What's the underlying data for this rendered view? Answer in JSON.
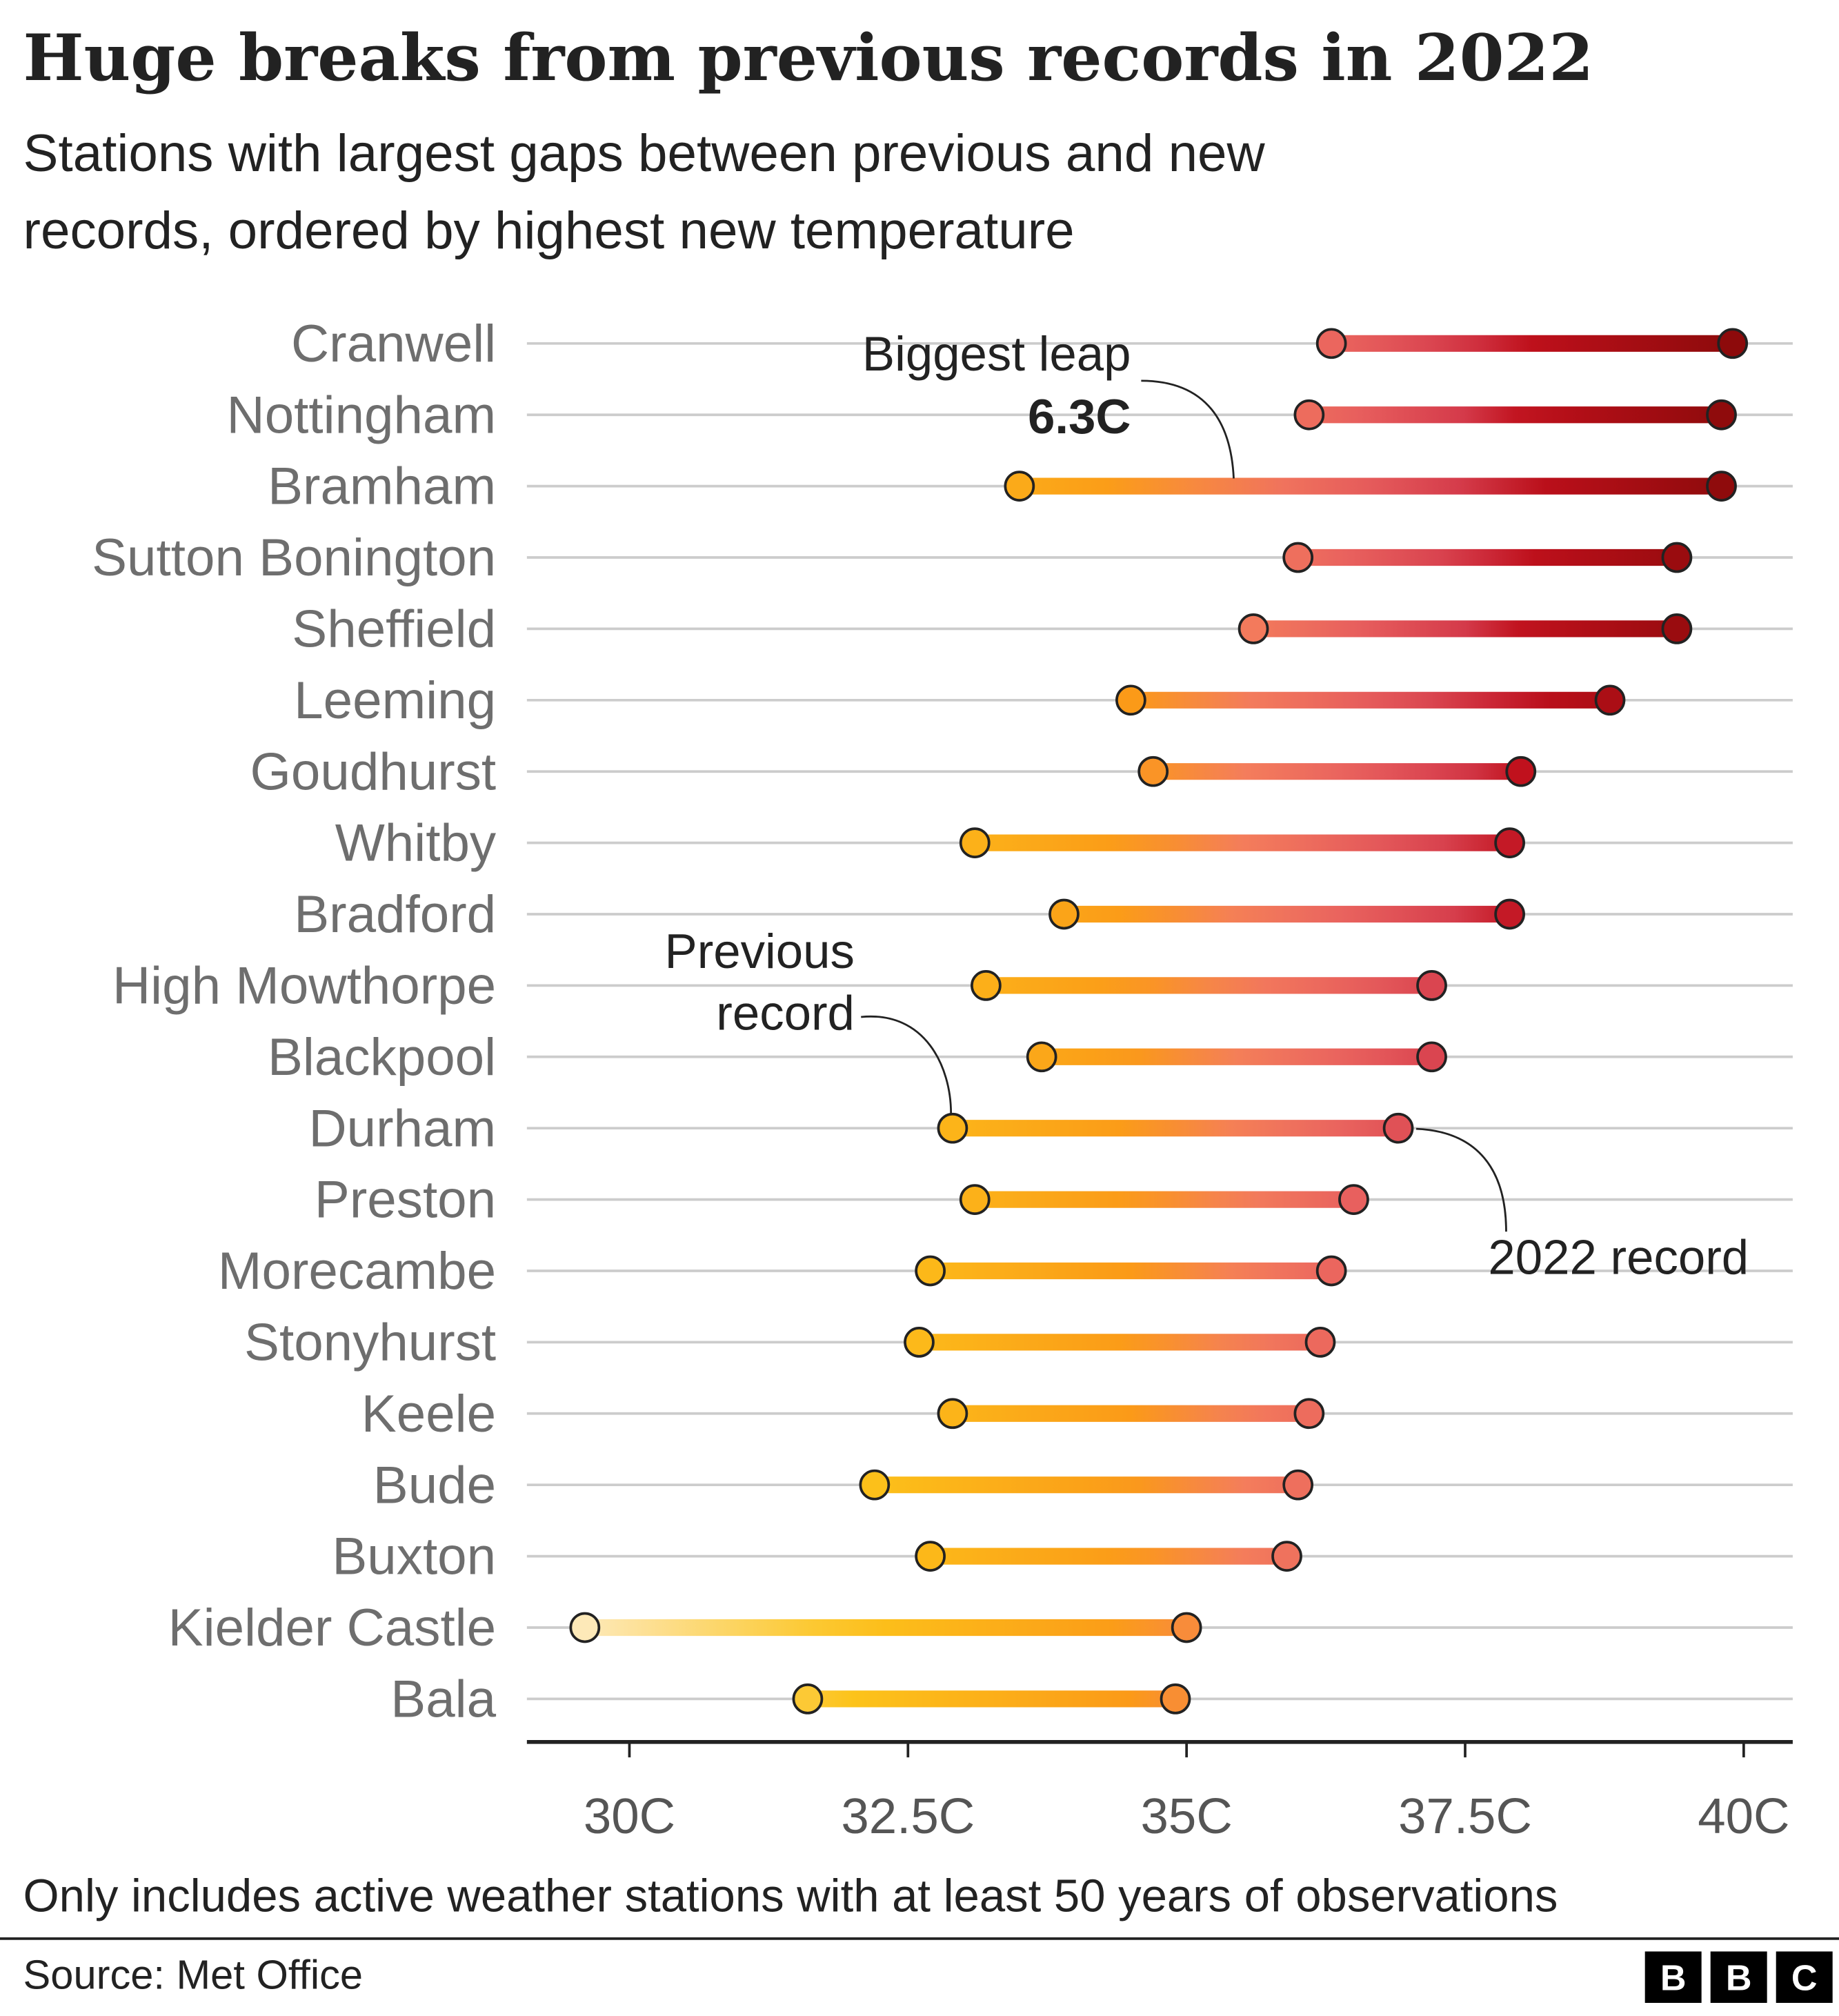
{
  "chart_data": {
    "type": "dumbbell",
    "title": "Huge breaks from previous records in 2022",
    "subtitle": [
      "Stations with largest gaps between previous and new",
      "records, ordered by highest new temperature"
    ],
    "categories": [
      "Cranwell",
      "Nottingham",
      "Bramham",
      "Sutton Bonington",
      "Sheffield",
      "Leeming",
      "Goudhurst",
      "Whitby",
      "Bradford",
      "High Mowthorpe",
      "Blackpool",
      "Durham",
      "Preston",
      "Morecambe",
      "Stonyhurst",
      "Keele",
      "Bude",
      "Buxton",
      "Kielder Castle",
      "Bala"
    ],
    "series": [
      {
        "values": [
          36.3,
          36.1,
          33.5,
          36.0,
          35.6,
          34.5,
          34.7,
          33.1,
          33.9,
          33.2,
          33.7,
          32.9,
          33.1,
          32.7,
          32.6,
          32.9,
          32.2,
          32.7,
          29.6,
          31.6
        ]
      },
      {
        "values": [
          39.9,
          39.8,
          39.8,
          39.4,
          39.4,
          38.8,
          38.0,
          37.9,
          37.9,
          37.2,
          37.2,
          36.9,
          36.5,
          36.3,
          36.2,
          36.1,
          36.0,
          35.9,
          35.0,
          34.9
        ]
      }
    ],
    "xlim": [
      29.08,
      40.44
    ],
    "xticks": [
      {
        "value": 30,
        "label": "30C"
      },
      {
        "value": 32.5,
        "label": "32.5C"
      },
      {
        "value": 35,
        "label": "35C"
      },
      {
        "value": 37.5,
        "label": "37.5C"
      },
      {
        "value": 40,
        "label": "40C"
      }
    ],
    "grid": true,
    "annotations": [
      "Biggest leap",
      "6.3C",
      "Previous",
      "record",
      "2022 record"
    ],
    "footnote": "Only includes active weather stations with at least 50 years of observations",
    "source": "Source: Met Office",
    "logo": [
      "B",
      "B",
      "C"
    ]
  }
}
